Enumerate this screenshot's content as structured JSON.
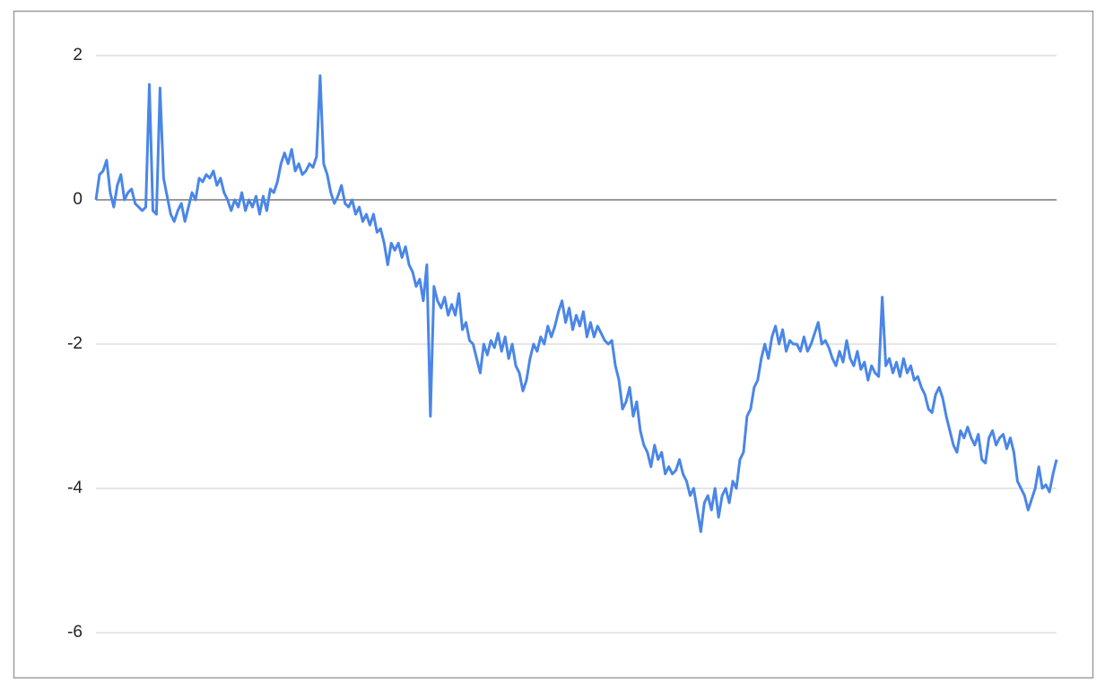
{
  "chart_data": {
    "type": "line",
    "series": [
      {
        "color": "#4a86e8",
        "values": [
          0,
          0.35,
          0.4,
          0.55,
          0.1,
          -0.1,
          0.2,
          0.35,
          0,
          0.1,
          0.15,
          -0.05,
          -0.1,
          -0.15,
          -0.1,
          1.6,
          -0.15,
          -0.2,
          1.55,
          0.3,
          0.05,
          -0.2,
          -0.3,
          -0.15,
          -0.05,
          -0.3,
          -0.1,
          0.1,
          0,
          0.3,
          0.25,
          0.35,
          0.3,
          0.4,
          0.2,
          0.3,
          0.1,
          0,
          -0.15,
          0,
          -0.1,
          0.1,
          -0.15,
          0,
          -0.1,
          0.05,
          -0.2,
          0.05,
          -0.15,
          0.15,
          0.1,
          0.25,
          0.5,
          0.65,
          0.5,
          0.7,
          0.4,
          0.5,
          0.35,
          0.4,
          0.5,
          0.45,
          0.6,
          1.72,
          0.5,
          0.35,
          0.1,
          -0.05,
          0.05,
          0.2,
          -0.05,
          -0.1,
          0,
          -0.2,
          -0.1,
          -0.3,
          -0.2,
          -0.35,
          -0.2,
          -0.45,
          -0.4,
          -0.6,
          -0.9,
          -0.6,
          -0.7,
          -0.6,
          -0.8,
          -0.65,
          -0.9,
          -1.0,
          -1.2,
          -1.1,
          -1.4,
          -0.9,
          -3.0,
          -1.2,
          -1.4,
          -1.5,
          -1.35,
          -1.6,
          -1.45,
          -1.6,
          -1.3,
          -1.8,
          -1.7,
          -1.95,
          -2.0,
          -2.2,
          -2.4,
          -2.0,
          -2.15,
          -1.95,
          -2.05,
          -1.85,
          -2.1,
          -1.9,
          -2.2,
          -2.0,
          -2.3,
          -2.4,
          -2.65,
          -2.5,
          -2.2,
          -2.0,
          -2.1,
          -1.9,
          -2.0,
          -1.75,
          -1.9,
          -1.75,
          -1.55,
          -1.4,
          -1.7,
          -1.5,
          -1.8,
          -1.6,
          -1.75,
          -1.55,
          -1.9,
          -1.7,
          -1.9,
          -1.75,
          -1.85,
          -1.95,
          -2.0,
          -1.95,
          -2.3,
          -2.5,
          -2.9,
          -2.8,
          -2.6,
          -3.0,
          -2.8,
          -3.2,
          -3.4,
          -3.5,
          -3.7,
          -3.4,
          -3.6,
          -3.5,
          -3.8,
          -3.7,
          -3.8,
          -3.75,
          -3.6,
          -3.8,
          -3.9,
          -4.1,
          -4.0,
          -4.3,
          -4.6,
          -4.2,
          -4.1,
          -4.3,
          -4.0,
          -4.4,
          -4.1,
          -4.0,
          -4.2,
          -3.9,
          -4.0,
          -3.6,
          -3.5,
          -3.0,
          -2.9,
          -2.6,
          -2.5,
          -2.2,
          -2.0,
          -2.2,
          -1.9,
          -1.75,
          -2.0,
          -1.8,
          -2.1,
          -1.95,
          -2.0,
          -2.0,
          -2.1,
          -1.9,
          -2.1,
          -2.0,
          -1.85,
          -1.7,
          -2.0,
          -1.95,
          -2.05,
          -2.2,
          -2.3,
          -2.1,
          -2.25,
          -1.95,
          -2.2,
          -2.3,
          -2.1,
          -2.35,
          -2.25,
          -2.5,
          -2.3,
          -2.4,
          -2.45,
          -1.35,
          -2.3,
          -2.2,
          -2.4,
          -2.25,
          -2.45,
          -2.2,
          -2.4,
          -2.3,
          -2.5,
          -2.45,
          -2.6,
          -2.7,
          -2.9,
          -2.95,
          -2.7,
          -2.6,
          -2.75,
          -3.0,
          -3.2,
          -3.4,
          -3.5,
          -3.2,
          -3.3,
          -3.15,
          -3.3,
          -3.4,
          -3.25,
          -3.6,
          -3.65,
          -3.3,
          -3.2,
          -3.4,
          -3.3,
          -3.25,
          -3.45,
          -3.3,
          -3.5,
          -3.9,
          -4.0,
          -4.1,
          -4.3,
          -4.15,
          -4.0,
          -3.7,
          -4.0,
          -3.95,
          -4.05,
          -3.8,
          -3.6
        ]
      }
    ],
    "ylim": [
      -6,
      2
    ],
    "yticks": [
      -6,
      -4,
      -2,
      0,
      2
    ],
    "grid": true
  }
}
